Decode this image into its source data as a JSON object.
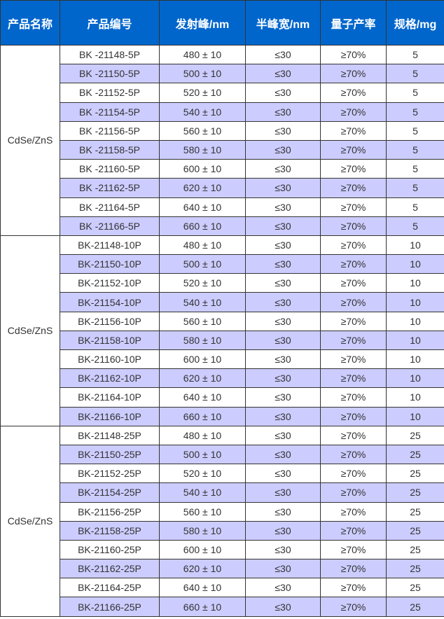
{
  "headers": [
    "产品名称",
    "产品编号",
    "发射峰/nm",
    "半峰宽/nm",
    "量子产率",
    "规格/mg"
  ],
  "colors": {
    "header_bg": "#0066cc",
    "alt_row_bg": "#ccccff"
  },
  "groups": [
    {
      "name": "CdSe/ZnS",
      "spec": "5",
      "codes": [
        "BK -21148-5P",
        "BK -21150-5P",
        "BK -21152-5P",
        "BK -21154-5P",
        "BK -21156-5P",
        "BK -21158-5P",
        "BK -21160-5P",
        "BK -21162-5P",
        "BK -21164-5P",
        "BK -21166-5P"
      ]
    },
    {
      "name": "CdSe/ZnS",
      "spec": "10",
      "codes": [
        "BK-21148-10P",
        "BK-21150-10P",
        "BK-21152-10P",
        "BK-21154-10P",
        "BK-21156-10P",
        "BK-21158-10P",
        "BK-21160-10P",
        "BK-21162-10P",
        "BK-21164-10P",
        "BK-21166-10P"
      ]
    },
    {
      "name": "CdSe/ZnS",
      "spec": "25",
      "codes": [
        "BK-21148-25P",
        "BK-21150-25P",
        "BK-21152-25P",
        "BK-21154-25P",
        "BK-21156-25P",
        "BK-21158-25P",
        "BK-21160-25P",
        "BK-21162-25P",
        "BK-21164-25P",
        "BK-21166-25P"
      ]
    }
  ],
  "emission": [
    "480 ± 10",
    "500 ± 10",
    "520 ± 10",
    "540 ± 10",
    "560 ± 10",
    "580 ± 10",
    "600 ± 10",
    "620 ± 10",
    "640 ± 10",
    "660 ± 10"
  ],
  "fwhm": "≤30",
  "qy": "≥70%"
}
